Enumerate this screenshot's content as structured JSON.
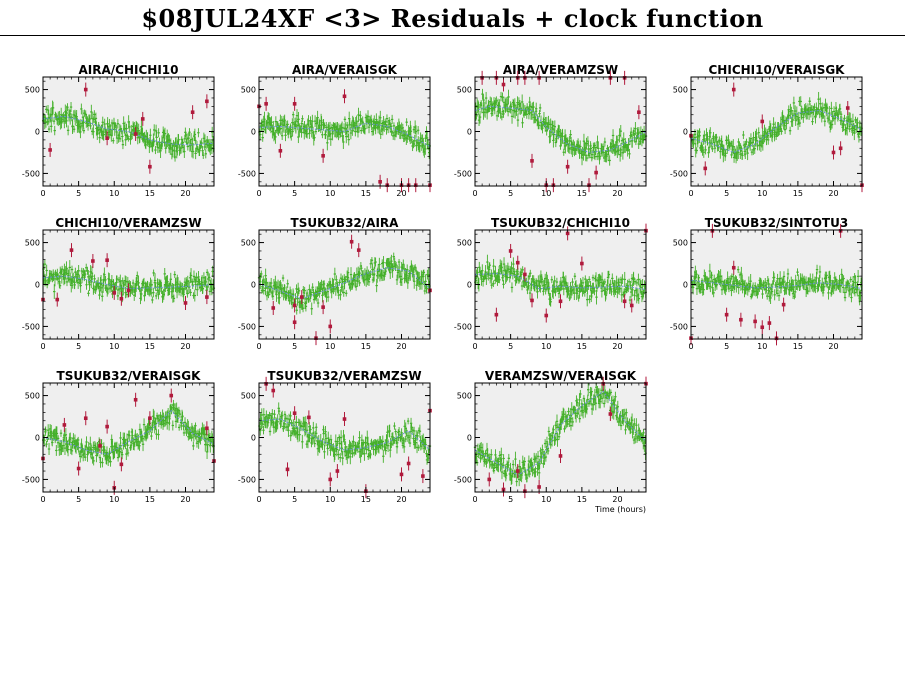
{
  "title": "$08JUL24XF <3> Residuals + clock function",
  "xlabel": "Time (hours)",
  "colors": {
    "background": "#ffffff",
    "plot_bg": "#efefef",
    "residual": "#44b02a",
    "flagged": "#b01a3c",
    "clock": "#6a8fd8"
  },
  "chart_data": [
    {
      "type": "scatter",
      "title": "AIRA/CHICHI10",
      "xlim": [
        0,
        24
      ],
      "ylim": [
        -650,
        650
      ],
      "xticks": [
        0,
        5,
        10,
        15,
        20
      ],
      "yticks": [
        500,
        0,
        -500
      ],
      "clock_x": [
        0,
        3,
        6,
        9,
        12,
        15,
        18,
        21,
        24
      ],
      "clock_y": [
        150,
        180,
        120,
        30,
        0,
        -100,
        -150,
        -160,
        -140
      ],
      "flagged_x": [
        1,
        6,
        9,
        13,
        14,
        15,
        21,
        23
      ],
      "flagged_y": [
        -220,
        500,
        -80,
        -30,
        150,
        -420,
        230,
        360
      ]
    },
    {
      "type": "scatter",
      "title": "AIRA/VERAISGK",
      "xlim": [
        0,
        24
      ],
      "ylim": [
        -650,
        650
      ],
      "xticks": [
        0,
        5,
        10,
        15,
        20
      ],
      "yticks": [
        500,
        0,
        -500
      ],
      "clock_x": [
        0,
        3,
        6,
        9,
        12,
        15,
        18,
        21,
        24
      ],
      "clock_y": [
        50,
        60,
        40,
        20,
        0,
        100,
        60,
        -40,
        -180
      ],
      "flagged_x": [
        0,
        1,
        3,
        5,
        9,
        12,
        17,
        18,
        20,
        21,
        22,
        24
      ],
      "flagged_y": [
        300,
        330,
        -230,
        330,
        -290,
        420,
        -600,
        -640,
        -640,
        -640,
        -640,
        -640
      ]
    },
    {
      "type": "scatter",
      "title": "AIRA/VERAMZSW",
      "xlim": [
        0,
        24
      ],
      "ylim": [
        -650,
        650
      ],
      "xticks": [
        0,
        5,
        10,
        15,
        20
      ],
      "yticks": [
        500,
        0,
        -500
      ],
      "clock_x": [
        0,
        2,
        5,
        8,
        10,
        13,
        16,
        19,
        22,
        24
      ],
      "clock_y": [
        250,
        300,
        280,
        250,
        50,
        -150,
        -250,
        -220,
        -100,
        0
      ],
      "flagged_x": [
        1,
        3,
        4,
        6,
        7,
        8,
        9,
        10,
        11,
        13,
        16,
        17,
        19,
        21,
        23
      ],
      "flagged_y": [
        640,
        640,
        560,
        640,
        640,
        -350,
        640,
        -640,
        -640,
        -420,
        -640,
        -490,
        640,
        640,
        230
      ]
    },
    {
      "type": "scatter",
      "title": "CHICHI10/VERAISGK",
      "xlim": [
        0,
        24
      ],
      "ylim": [
        -650,
        650
      ],
      "xticks": [
        0,
        5,
        10,
        15,
        20
      ],
      "yticks": [
        500,
        0,
        -500
      ],
      "clock_x": [
        0,
        3,
        6,
        9,
        12,
        15,
        18,
        21,
        24
      ],
      "clock_y": [
        -80,
        -150,
        -250,
        -150,
        50,
        220,
        250,
        150,
        20
      ],
      "flagged_x": [
        0,
        2,
        6,
        10,
        20,
        21,
        22,
        24
      ],
      "flagged_y": [
        -50,
        -440,
        500,
        120,
        -250,
        -200,
        280,
        -640
      ]
    },
    {
      "type": "scatter",
      "title": "CHICHI10/VERAMZSW",
      "xlim": [
        0,
        24
      ],
      "ylim": [
        -650,
        650
      ],
      "xticks": [
        0,
        5,
        10,
        15,
        20
      ],
      "yticks": [
        500,
        0,
        -500
      ],
      "clock_x": [
        0,
        3,
        6,
        9,
        12,
        15,
        18,
        21,
        24
      ],
      "clock_y": [
        80,
        100,
        60,
        0,
        -50,
        -40,
        -30,
        -20,
        0
      ],
      "flagged_x": [
        0,
        2,
        4,
        7,
        9,
        10,
        11,
        12,
        20,
        23
      ],
      "flagged_y": [
        -180,
        -180,
        410,
        280,
        290,
        -100,
        -170,
        -70,
        -220,
        -150
      ]
    },
    {
      "type": "scatter",
      "title": "TSUKUB32/AIRA",
      "xlim": [
        0,
        24
      ],
      "ylim": [
        -650,
        650
      ],
      "xticks": [
        0,
        5,
        10,
        15,
        20
      ],
      "yticks": [
        500,
        0,
        -500
      ],
      "clock_x": [
        0,
        3,
        6,
        9,
        12,
        15,
        18,
        21,
        24
      ],
      "clock_y": [
        10,
        -80,
        -170,
        -80,
        20,
        130,
        200,
        160,
        -50
      ],
      "flagged_x": [
        2,
        5,
        5,
        6,
        8,
        9,
        10,
        13,
        14,
        24
      ],
      "flagged_y": [
        -280,
        -250,
        -450,
        -150,
        -640,
        -270,
        -500,
        510,
        410,
        -70
      ]
    },
    {
      "type": "scatter",
      "title": "TSUKUB32/CHICHI10",
      "xlim": [
        0,
        24
      ],
      "ylim": [
        -650,
        650
      ],
      "xticks": [
        0,
        5,
        10,
        15,
        20
      ],
      "yticks": [
        500,
        0,
        -500
      ],
      "clock_x": [
        0,
        3,
        6,
        9,
        12,
        15,
        18,
        21,
        24
      ],
      "clock_y": [
        120,
        130,
        100,
        -50,
        -20,
        -40,
        -30,
        -20,
        -60
      ],
      "flagged_x": [
        3,
        5,
        6,
        7,
        8,
        10,
        12,
        13,
        15,
        21,
        22,
        24
      ],
      "flagged_y": [
        -360,
        400,
        260,
        120,
        -190,
        -370,
        -200,
        610,
        250,
        -200,
        -250,
        650
      ]
    },
    {
      "type": "scatter",
      "title": "TSUKUB32/SINTOTU3",
      "xlim": [
        0,
        24
      ],
      "ylim": [
        -650,
        650
      ],
      "xticks": [
        0,
        5,
        10,
        15,
        20
      ],
      "yticks": [
        500,
        0,
        -500
      ],
      "clock_x": [
        0,
        3,
        6,
        9,
        12,
        15,
        18,
        21,
        24
      ],
      "clock_y": [
        50,
        20,
        -10,
        -40,
        -30,
        -10,
        20,
        0,
        -50
      ],
      "flagged_x": [
        0,
        3,
        5,
        6,
        7,
        9,
        10,
        11,
        12,
        13,
        21
      ],
      "flagged_y": [
        -640,
        640,
        -360,
        200,
        -420,
        -440,
        -510,
        -460,
        -650,
        -240,
        640
      ]
    },
    {
      "type": "scatter",
      "title": "TSUKUB32/VERAISGK",
      "xlim": [
        0,
        24
      ],
      "ylim": [
        -650,
        650
      ],
      "xticks": [
        0,
        5,
        10,
        15,
        20
      ],
      "yticks": [
        500,
        0,
        -500
      ],
      "clock_x": [
        0,
        3,
        6,
        9,
        12,
        15,
        18,
        21,
        24
      ],
      "clock_y": [
        0,
        -50,
        -150,
        -200,
        -50,
        80,
        320,
        50,
        -80
      ],
      "flagged_x": [
        0,
        3,
        5,
        6,
        8,
        9,
        10,
        11,
        13,
        15,
        18,
        23,
        24
      ],
      "flagged_y": [
        -250,
        150,
        -370,
        230,
        -100,
        130,
        -600,
        -320,
        450,
        230,
        500,
        110,
        -280
      ]
    },
    {
      "type": "scatter",
      "title": "TSUKUB32/VERAMZSW",
      "xlim": [
        0,
        24
      ],
      "ylim": [
        -650,
        650
      ],
      "xticks": [
        0,
        5,
        10,
        15,
        20
      ],
      "yticks": [
        500,
        0,
        -500
      ],
      "clock_x": [
        0,
        3,
        6,
        9,
        12,
        15,
        18,
        21,
        24
      ],
      "clock_y": [
        200,
        220,
        100,
        -50,
        -150,
        -120,
        -60,
        80,
        -150
      ],
      "flagged_x": [
        1,
        2,
        4,
        5,
        7,
        10,
        11,
        12,
        15,
        20,
        21,
        23,
        24
      ],
      "flagged_y": [
        640,
        560,
        -380,
        290,
        240,
        -500,
        -400,
        220,
        -640,
        -440,
        -310,
        -460,
        320
      ]
    },
    {
      "type": "scatter",
      "title": "VERAMZSW/VERAISGK",
      "xlim": [
        0,
        24
      ],
      "ylim": [
        -650,
        650
      ],
      "xticks": [
        0,
        5,
        10,
        15,
        20
      ],
      "yticks": [
        500,
        0,
        -500
      ],
      "clock_x": [
        0,
        3,
        6,
        9,
        12,
        15,
        18,
        21,
        24
      ],
      "clock_y": [
        -150,
        -300,
        -450,
        -300,
        150,
        380,
        550,
        200,
        -50
      ],
      "flagged_x": [
        2,
        4,
        6,
        7,
        9,
        12,
        18,
        19,
        24
      ],
      "flagged_y": [
        -500,
        -620,
        -400,
        -640,
        -590,
        -220,
        640,
        280,
        650
      ]
    }
  ]
}
